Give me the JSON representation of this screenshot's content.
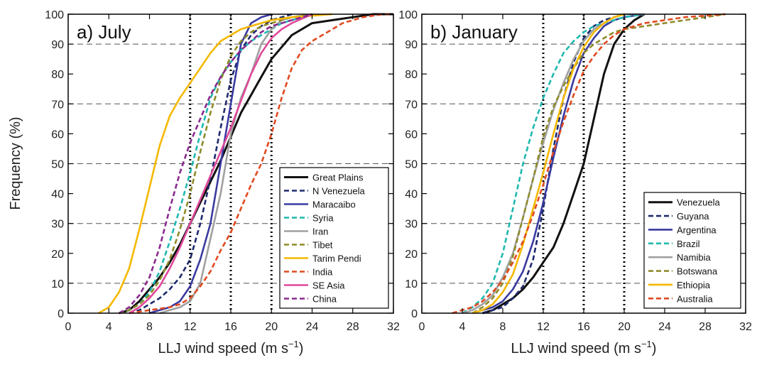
{
  "y_axis_label": "Frequency (%)",
  "chart_data": [
    {
      "type": "line",
      "title": "a) July",
      "xlabel": "LLJ wind speed (m s",
      "xlabel_sup": "−1",
      "ylabel": "Frequency (%)",
      "xlim": [
        0,
        32
      ],
      "ylim": [
        0,
        100
      ],
      "x_ticks": [
        0,
        4,
        8,
        12,
        16,
        20,
        24,
        28,
        32
      ],
      "y_ticks": [
        0,
        10,
        20,
        30,
        40,
        50,
        60,
        70,
        80,
        90,
        100
      ],
      "dashed_gridlines_y": [
        10,
        30,
        50,
        70,
        90
      ],
      "dotted_reference_x": [
        12,
        16,
        20
      ],
      "legend_position": "lower-right",
      "series": [
        {
          "name": "Great Plains",
          "color": "#111111",
          "style": "solid",
          "x": [
            5,
            6,
            7,
            8,
            9,
            10,
            11,
            12,
            13,
            14,
            15,
            16,
            17,
            18,
            19,
            20,
            21,
            22,
            24,
            26,
            28,
            30,
            32
          ],
          "values": [
            0,
            1,
            4,
            8,
            12,
            17,
            23,
            30,
            37,
            44,
            51,
            59,
            67,
            73,
            79,
            85,
            89,
            93,
            97,
            98,
            99,
            100,
            100
          ]
        },
        {
          "name": "N Venezuela",
          "color": "#1f2a6e",
          "style": "dashed",
          "x": [
            6,
            7,
            8,
            9,
            10,
            11,
            12,
            13,
            14,
            15,
            16,
            17,
            18,
            19,
            20,
            21,
            22
          ],
          "values": [
            0,
            1,
            3,
            5,
            8,
            12,
            18,
            30,
            45,
            62,
            78,
            88,
            93,
            96,
            98,
            99,
            100
          ]
        },
        {
          "name": "Maracaibo",
          "color": "#3a3aa0",
          "style": "solid",
          "x": [
            8,
            9,
            10,
            11,
            12,
            13,
            14,
            15,
            16,
            17,
            18,
            19,
            20
          ],
          "values": [
            0,
            1,
            2,
            4,
            9,
            18,
            30,
            50,
            70,
            90,
            97,
            99,
            100
          ]
        },
        {
          "name": "Syria",
          "color": "#1fb8b0",
          "style": "dashed",
          "x": [
            5,
            6,
            7,
            8,
            9,
            10,
            11,
            12,
            13,
            14,
            15,
            16,
            17,
            18,
            19,
            20,
            21,
            22,
            24
          ],
          "values": [
            0,
            1,
            3,
            7,
            14,
            24,
            35,
            47,
            60,
            72,
            79,
            84,
            88,
            91,
            93,
            95,
            97,
            98,
            100
          ]
        },
        {
          "name": "Iran",
          "color": "#a0a0a0",
          "style": "solid",
          "x": [
            9,
            10,
            11,
            12,
            13,
            14,
            15,
            16,
            17,
            18,
            19,
            20,
            21,
            22,
            24
          ],
          "values": [
            0,
            1,
            2,
            4,
            10,
            25,
            40,
            60,
            72,
            80,
            90,
            95,
            98,
            99,
            100
          ]
        },
        {
          "name": "Tibet",
          "color": "#8f8b2a",
          "style": "dashed",
          "x": [
            5,
            6,
            7,
            8,
            9,
            10,
            11,
            12,
            13,
            14,
            15,
            16,
            17,
            18,
            19,
            20,
            22,
            24
          ],
          "values": [
            0,
            1,
            3,
            6,
            11,
            18,
            28,
            40,
            54,
            67,
            78,
            86,
            91,
            94,
            96,
            97,
            99,
            100
          ]
        },
        {
          "name": "Tarim Pendi",
          "color": "#f5b800",
          "style": "solid",
          "x": [
            3,
            4,
            5,
            6,
            7,
            8,
            9,
            10,
            11,
            12,
            13,
            14,
            15,
            16,
            17,
            18,
            20,
            22,
            24,
            26
          ],
          "values": [
            0,
            2,
            7,
            15,
            28,
            42,
            56,
            66,
            72,
            77,
            82,
            87,
            91,
            93,
            95,
            96,
            98,
            99,
            99.5,
            100
          ]
        },
        {
          "name": "India",
          "color": "#e04a20",
          "style": "dashed",
          "x": [
            6,
            8,
            10,
            11,
            12,
            13,
            14,
            15,
            16,
            17,
            18,
            19,
            20,
            21,
            22,
            23,
            24,
            25,
            26,
            27,
            28,
            29,
            30,
            31,
            32
          ],
          "values": [
            0,
            1,
            2,
            3,
            5,
            9,
            14,
            21,
            27,
            35,
            43,
            50,
            60,
            72,
            82,
            88,
            91,
            93,
            95,
            97,
            98,
            99,
            99.5,
            100,
            100
          ]
        },
        {
          "name": "SE Asia",
          "color": "#e0489a",
          "style": "solid",
          "x": [
            6,
            7,
            8,
            9,
            10,
            11,
            12,
            13,
            14,
            15,
            16,
            17,
            18,
            19,
            20,
            21,
            22,
            24
          ],
          "values": [
            0,
            2,
            5,
            9,
            15,
            22,
            30,
            38,
            46,
            54,
            62,
            71,
            80,
            87,
            92,
            95,
            97,
            100
          ]
        },
        {
          "name": "China",
          "color": "#8a2a8e",
          "style": "dashed",
          "x": [
            5,
            6,
            7,
            8,
            9,
            10,
            11,
            12,
            13,
            14,
            15,
            16,
            17,
            18,
            19,
            20,
            22,
            24
          ],
          "values": [
            0,
            2,
            6,
            12,
            22,
            35,
            47,
            57,
            65,
            73,
            79,
            84,
            88,
            91,
            94,
            96,
            98,
            100
          ]
        }
      ]
    },
    {
      "type": "line",
      "title": "b) January",
      "xlabel": "LLJ wind speed (m s",
      "xlabel_sup": "−1",
      "xlim": [
        0,
        32
      ],
      "ylim": [
        0,
        100
      ],
      "x_ticks": [
        0,
        4,
        8,
        12,
        16,
        20,
        24,
        28,
        32
      ],
      "y_ticks": [
        0,
        10,
        20,
        30,
        40,
        50,
        60,
        70,
        80,
        90,
        100
      ],
      "dashed_gridlines_y": [
        10,
        30,
        50,
        70,
        90
      ],
      "dotted_reference_x": [
        12,
        16,
        20
      ],
      "legend_position": "lower-right",
      "series": [
        {
          "name": "Venezuela",
          "color": "#111111",
          "style": "solid",
          "x": [
            6,
            7,
            8,
            9,
            10,
            11,
            12,
            13,
            14,
            15,
            16,
            17,
            18,
            19,
            20,
            21,
            22
          ],
          "values": [
            0,
            1,
            3,
            5,
            8,
            12,
            17,
            22,
            30,
            40,
            50,
            65,
            80,
            90,
            95,
            98,
            100
          ]
        },
        {
          "name": "Guyana",
          "color": "#1f2a6e",
          "style": "dashed",
          "x": [
            6,
            7,
            8,
            9,
            10,
            11,
            12,
            13,
            14,
            15,
            16,
            17,
            18,
            20
          ],
          "values": [
            0,
            1,
            2,
            5,
            9,
            18,
            35,
            55,
            72,
            84,
            92,
            96,
            98,
            100
          ]
        },
        {
          "name": "Argentina",
          "color": "#3a3aa0",
          "style": "solid",
          "x": [
            5,
            6,
            7,
            8,
            9,
            10,
            11,
            12,
            13,
            14,
            15,
            16,
            17,
            18,
            19,
            20,
            22
          ],
          "values": [
            0,
            1,
            2,
            4,
            8,
            14,
            24,
            37,
            52,
            66,
            78,
            87,
            92,
            96,
            98,
            99,
            100
          ]
        },
        {
          "name": "Brazil",
          "color": "#1fb8b0",
          "style": "dashed",
          "x": [
            4,
            5,
            6,
            7,
            8,
            9,
            10,
            11,
            12,
            13,
            14,
            15,
            16,
            17,
            18,
            19,
            20,
            22
          ],
          "values": [
            0,
            2,
            5,
            10,
            20,
            35,
            50,
            62,
            72,
            80,
            87,
            91,
            94,
            96,
            97,
            98,
            99,
            100
          ]
        },
        {
          "name": "Namibia",
          "color": "#a0a0a0",
          "style": "solid",
          "x": [
            4,
            5,
            6,
            7,
            8,
            9,
            10,
            11,
            12,
            13,
            14,
            15,
            16,
            17,
            18,
            19,
            20,
            22
          ],
          "values": [
            0,
            1,
            3,
            6,
            12,
            20,
            32,
            45,
            57,
            68,
            77,
            85,
            91,
            95,
            97,
            99,
            100,
            100
          ]
        },
        {
          "name": "Botswana",
          "color": "#8f8b2a",
          "style": "dashed",
          "x": [
            5,
            6,
            7,
            8,
            9,
            10,
            11,
            12,
            13,
            14,
            15,
            16,
            17,
            18,
            19,
            20,
            22,
            24,
            26,
            28,
            30
          ],
          "values": [
            0,
            2,
            5,
            10,
            19,
            32,
            45,
            59,
            69,
            76,
            82,
            87,
            90,
            92,
            94,
            95,
            96,
            97,
            98,
            99,
            100
          ]
        },
        {
          "name": "Ethiopia",
          "color": "#f5b800",
          "style": "solid",
          "x": [
            5,
            6,
            7,
            8,
            9,
            10,
            11,
            12,
            13,
            14,
            15,
            16,
            17,
            18,
            19,
            20
          ],
          "values": [
            0,
            1,
            3,
            7,
            13,
            23,
            35,
            47,
            60,
            72,
            82,
            89,
            94,
            97,
            99,
            100
          ]
        },
        {
          "name": "Australia",
          "color": "#e04a20",
          "style": "dashed",
          "x": [
            3,
            4,
            5,
            6,
            7,
            8,
            9,
            10,
            11,
            12,
            13,
            14,
            15,
            16,
            17,
            18,
            19,
            20,
            21,
            22,
            24,
            26,
            28,
            30
          ],
          "values": [
            0,
            1,
            2,
            4,
            7,
            11,
            17,
            24,
            33,
            43,
            54,
            64,
            73,
            81,
            86,
            90,
            93,
            95,
            96,
            97,
            98,
            99,
            99.5,
            100
          ]
        }
      ]
    }
  ]
}
